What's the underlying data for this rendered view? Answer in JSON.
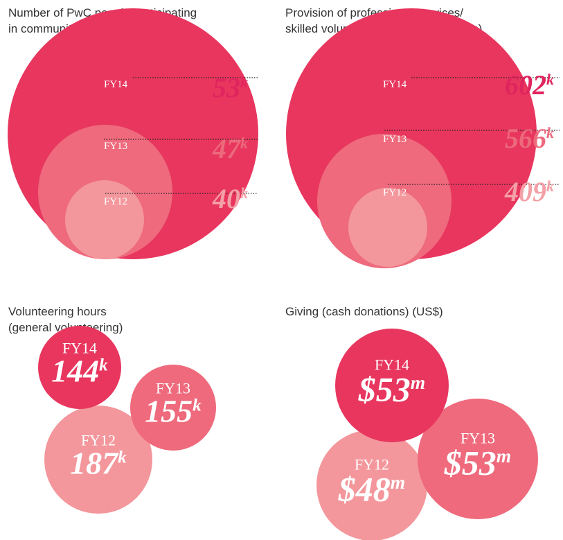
{
  "chart_data": [
    {
      "type": "nested",
      "title": [
        "Number of PwC people participating",
        "in community activities"
      ],
      "categories": [
        "FY14",
        "FY13",
        "FY12"
      ],
      "values": [
        53,
        47,
        40
      ],
      "unit": "k",
      "colors": [
        "#e8365e",
        "#ee6a7c",
        "#f3979c"
      ]
    },
    {
      "type": "nested",
      "title": [
        "Provision of professional services/",
        "skilled volunteering (number of hours)"
      ],
      "categories": [
        "FY14",
        "FY13",
        "FY12"
      ],
      "values": [
        602,
        566,
        409
      ],
      "unit": "k",
      "colors": [
        "#e8365e",
        "#ee6a7c",
        "#f3979c"
      ]
    },
    {
      "type": "cluster",
      "title": [
        "Volunteering hours",
        "(general volunteering)"
      ],
      "categories": [
        "FY14",
        "FY13",
        "FY12"
      ],
      "values": [
        144,
        155,
        187
      ],
      "unit": "k",
      "colors": [
        "#e8365e",
        "#ee6a7c",
        "#f3979c"
      ]
    },
    {
      "type": "cluster",
      "title": [
        "Giving (cash donations) (US$)"
      ],
      "categories": [
        "FY14",
        "FY13",
        "FY12"
      ],
      "values": [
        53,
        53,
        48
      ],
      "prefix": "$",
      "unit": "m",
      "colors": [
        "#e8365e",
        "#ee6a7c",
        "#f3979c"
      ]
    }
  ]
}
